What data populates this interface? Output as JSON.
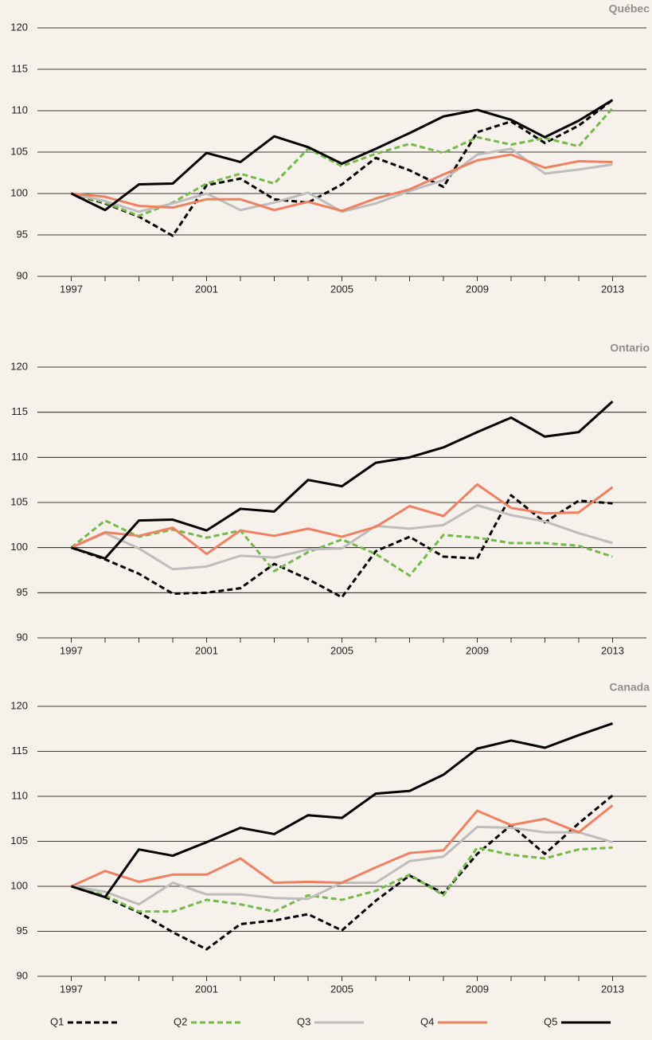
{
  "chart_data": [
    {
      "type": "line",
      "title": "Québec",
      "x": [
        1997,
        1998,
        1999,
        2000,
        2001,
        2002,
        2003,
        2004,
        2005,
        2006,
        2007,
        2008,
        2009,
        2010,
        2011,
        2012,
        2013
      ],
      "xlim": [
        1996,
        2014
      ],
      "xticks": [
        1997,
        2001,
        2005,
        2009,
        2013
      ],
      "ylim": [
        90,
        120
      ],
      "yticks": [
        90,
        95,
        100,
        105,
        110,
        115,
        120
      ],
      "grid": true,
      "series": [
        {
          "name": "Q1",
          "color": "#000000",
          "dash": "dashed",
          "values": [
            100,
            98.8,
            97.2,
            94.9,
            101,
            101.8,
            99.3,
            98.9,
            101.1,
            104.3,
            102.8,
            100.8,
            107.4,
            108.7,
            106.1,
            108.2,
            111.3
          ]
        },
        {
          "name": "Q2",
          "color": "#74b94a",
          "dash": "dashed",
          "values": [
            100,
            98.9,
            97.3,
            98.9,
            101.2,
            102.4,
            101.2,
            105.4,
            103.3,
            104.8,
            106.0,
            104.9,
            106.8,
            105.9,
            106.7,
            105.7,
            110.3
          ]
        },
        {
          "name": "Q3",
          "color": "#bdbdbd",
          "dash": "solid",
          "values": [
            100,
            99.1,
            97.8,
            98.8,
            100.0,
            98.0,
            98.9,
            100.1,
            97.8,
            98.8,
            100.3,
            101.6,
            104.7,
            105.4,
            102.4,
            102.9,
            103.5
          ]
        },
        {
          "name": "Q4",
          "color": "#ef8163",
          "dash": "solid",
          "values": [
            100,
            99.6,
            98.5,
            98.3,
            99.3,
            99.3,
            98.0,
            99.0,
            97.9,
            99.4,
            100.5,
            102.3,
            104.0,
            104.7,
            103.1,
            103.9,
            103.8
          ]
        },
        {
          "name": "Q5",
          "color": "#000000",
          "dash": "solid",
          "values": [
            100,
            98.0,
            101.1,
            101.2,
            104.9,
            103.8,
            106.9,
            105.6,
            103.6,
            105.4,
            107.3,
            109.3,
            110.1,
            108.9,
            106.8,
            108.8,
            111.3
          ]
        }
      ]
    },
    {
      "type": "line",
      "title": "Ontario",
      "x": [
        1997,
        1998,
        1999,
        2000,
        2001,
        2002,
        2003,
        2004,
        2005,
        2006,
        2007,
        2008,
        2009,
        2010,
        2011,
        2012,
        2013
      ],
      "xlim": [
        1996,
        2014
      ],
      "xticks": [
        1997,
        2001,
        2005,
        2009,
        2013
      ],
      "ylim": [
        90,
        120
      ],
      "yticks": [
        90,
        95,
        100,
        105,
        110,
        115,
        120
      ],
      "grid": true,
      "series": [
        {
          "name": "Q1",
          "color": "#000000",
          "dash": "dashed",
          "values": [
            100,
            98.7,
            97.1,
            94.9,
            95.0,
            95.5,
            98.2,
            96.5,
            94.5,
            99.6,
            101.2,
            99.0,
            98.8,
            105.8,
            102.8,
            105.2,
            104.9
          ]
        },
        {
          "name": "Q2",
          "color": "#74b94a",
          "dash": "dashed",
          "values": [
            100,
            103.0,
            101.2,
            102.0,
            101.1,
            101.9,
            97.4,
            99.5,
            100.9,
            99.3,
            96.9,
            101.4,
            101.1,
            100.5,
            100.5,
            100.2,
            99.0
          ]
        },
        {
          "name": "Q3",
          "color": "#bdbdbd",
          "dash": "solid",
          "values": [
            100,
            101.6,
            99.9,
            97.6,
            97.9,
            99.1,
            98.9,
            99.8,
            99.9,
            102.4,
            102.1,
            102.5,
            104.7,
            103.6,
            102.9,
            101.6,
            100.5
          ]
        },
        {
          "name": "Q4",
          "color": "#ef8163",
          "dash": "solid",
          "values": [
            100,
            101.7,
            101.3,
            102.2,
            99.3,
            101.9,
            101.3,
            102.1,
            101.2,
            102.3,
            104.6,
            103.5,
            107.0,
            104.4,
            103.8,
            103.9,
            106.7
          ]
        },
        {
          "name": "Q5",
          "color": "#000000",
          "dash": "solid",
          "values": [
            100,
            98.8,
            103.0,
            103.1,
            101.9,
            104.3,
            104.0,
            107.5,
            106.8,
            109.4,
            110.0,
            111.1,
            112.8,
            114.4,
            112.3,
            112.8,
            116.2
          ]
        }
      ]
    },
    {
      "type": "line",
      "title": "Canada",
      "x": [
        1997,
        1998,
        1999,
        2000,
        2001,
        2002,
        2003,
        2004,
        2005,
        2006,
        2007,
        2008,
        2009,
        2010,
        2011,
        2012,
        2013
      ],
      "xlim": [
        1996,
        2014
      ],
      "xticks": [
        1997,
        2001,
        2005,
        2009,
        2013
      ],
      "ylim": [
        90,
        120
      ],
      "yticks": [
        90,
        95,
        100,
        105,
        110,
        115,
        120
      ],
      "grid": true,
      "series": [
        {
          "name": "Q1",
          "color": "#000000",
          "dash": "dashed",
          "values": [
            100,
            98.8,
            97.1,
            94.9,
            93.0,
            95.8,
            96.2,
            96.9,
            95.1,
            98.4,
            101.2,
            99.2,
            103.6,
            106.8,
            103.6,
            107.0,
            110.1
          ]
        },
        {
          "name": "Q2",
          "color": "#74b94a",
          "dash": "dashed",
          "values": [
            100,
            99.0,
            97.2,
            97.2,
            98.5,
            98.0,
            97.2,
            99.0,
            98.5,
            99.5,
            101.3,
            99.0,
            104.3,
            103.5,
            103.1,
            104.1,
            104.3
          ]
        },
        {
          "name": "Q3",
          "color": "#bdbdbd",
          "dash": "solid",
          "values": [
            100,
            99.4,
            98.0,
            100.4,
            99.1,
            99.1,
            98.7,
            98.6,
            100.4,
            100.4,
            102.8,
            103.3,
            106.6,
            106.5,
            106.0,
            106.0,
            104.9
          ]
        },
        {
          "name": "Q4",
          "color": "#ef8163",
          "dash": "solid",
          "values": [
            100,
            101.7,
            100.5,
            101.3,
            101.3,
            103.1,
            100.4,
            100.5,
            100.4,
            102.1,
            103.7,
            104.0,
            108.4,
            106.8,
            107.5,
            106.0,
            109.0
          ]
        },
        {
          "name": "Q5",
          "color": "#000000",
          "dash": "solid",
          "values": [
            100,
            98.8,
            104.1,
            103.4,
            104.9,
            106.5,
            105.8,
            107.9,
            107.6,
            110.3,
            110.6,
            112.4,
            115.3,
            116.2,
            115.4,
            116.8,
            118.1
          ]
        }
      ]
    }
  ]
}
